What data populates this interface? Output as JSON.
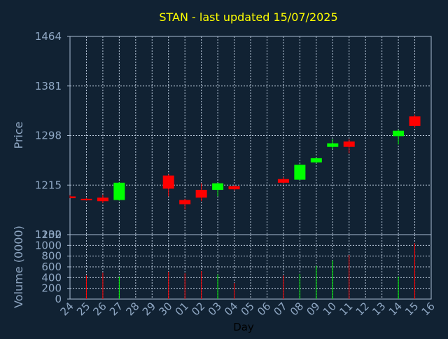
{
  "title": "STAN - last updated 15/07/2025",
  "colors": {
    "background": "#112233",
    "title": "#ffff00",
    "axis_text": "#8fa7c3",
    "frame": "#a9bcd3",
    "grid": "#b9c8da",
    "up": "#00ff00",
    "down": "#ff0000"
  },
  "chart_data": [
    {
      "type": "candlestick",
      "ylabel": "Price",
      "ylim": [
        1132,
        1464
      ],
      "yticks": [
        1132,
        1215,
        1298,
        1381,
        1464
      ],
      "grid": true,
      "x_tick_labels": [
        "24",
        "25",
        "26",
        "27",
        "28",
        "29",
        "30",
        "01",
        "02",
        "03",
        "04",
        "05",
        "06",
        "07",
        "08",
        "09",
        "10",
        "11",
        "12",
        "13",
        "14",
        "15",
        "16"
      ],
      "candles": [
        {
          "day": "24",
          "open": 1196,
          "high": 1198,
          "low": 1193,
          "close": 1193
        },
        {
          "day": "25",
          "open": 1192,
          "high": 1193,
          "low": 1189,
          "close": 1191
        },
        {
          "day": "26",
          "open": 1194,
          "high": 1199,
          "low": 1185,
          "close": 1188
        },
        {
          "day": "27",
          "open": 1190,
          "high": 1220,
          "low": 1189,
          "close": 1219
        },
        {
          "day": "30",
          "open": 1231,
          "high": 1233,
          "low": 1196,
          "close": 1209
        },
        {
          "day": "01",
          "open": 1190,
          "high": 1192,
          "low": 1174,
          "close": 1183
        },
        {
          "day": "02",
          "open": 1207,
          "high": 1218,
          "low": 1188,
          "close": 1194
        },
        {
          "day": "03",
          "open": 1207,
          "high": 1219,
          "low": 1196,
          "close": 1218
        },
        {
          "day": "04",
          "open": 1213,
          "high": 1215,
          "low": 1206,
          "close": 1208
        },
        {
          "day": "07",
          "open": 1225,
          "high": 1228,
          "low": 1218,
          "close": 1219
        },
        {
          "day": "08",
          "open": 1224,
          "high": 1250,
          "low": 1223,
          "close": 1249
        },
        {
          "day": "09",
          "open": 1253,
          "high": 1261,
          "low": 1252,
          "close": 1260
        },
        {
          "day": "10",
          "open": 1279,
          "high": 1292,
          "low": 1276,
          "close": 1285
        },
        {
          "day": "11",
          "open": 1288,
          "high": 1292,
          "low": 1268,
          "close": 1279
        },
        {
          "day": "14",
          "open": 1297,
          "high": 1308,
          "low": 1283,
          "close": 1306
        },
        {
          "day": "15",
          "open": 1330,
          "high": 1333,
          "low": 1311,
          "close": 1314
        }
      ]
    },
    {
      "type": "bar",
      "ylabel": "Volume (0000)",
      "xlabel": "Day",
      "ylim": [
        0,
        1200
      ],
      "yticks": [
        0,
        200,
        400,
        600,
        800,
        1000,
        1200
      ],
      "grid": true,
      "values": [
        {
          "day": "25",
          "value": 440,
          "direction": "down"
        },
        {
          "day": "26",
          "value": 490,
          "direction": "down"
        },
        {
          "day": "27",
          "value": 420,
          "direction": "up"
        },
        {
          "day": "30",
          "value": 510,
          "direction": "down"
        },
        {
          "day": "01",
          "value": 480,
          "direction": "down"
        },
        {
          "day": "02",
          "value": 520,
          "direction": "down"
        },
        {
          "day": "03",
          "value": 460,
          "direction": "up"
        },
        {
          "day": "04",
          "value": 300,
          "direction": "down"
        },
        {
          "day": "07",
          "value": 440,
          "direction": "down"
        },
        {
          "day": "08",
          "value": 470,
          "direction": "up"
        },
        {
          "day": "09",
          "value": 620,
          "direction": "up"
        },
        {
          "day": "10",
          "value": 720,
          "direction": "up"
        },
        {
          "day": "11",
          "value": 820,
          "direction": "down"
        },
        {
          "day": "14",
          "value": 420,
          "direction": "up"
        },
        {
          "day": "15",
          "value": 1040,
          "direction": "down"
        }
      ]
    }
  ]
}
